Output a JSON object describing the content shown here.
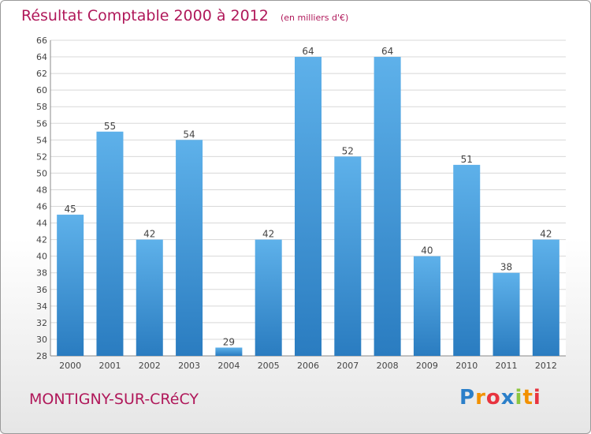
{
  "chart_data": {
    "type": "bar",
    "title": "Résultat Comptable 2000 à 2012",
    "subtitle": "(en milliers d'€)",
    "categories": [
      "2000",
      "2001",
      "2002",
      "2003",
      "2004",
      "2005",
      "2006",
      "2007",
      "2008",
      "2009",
      "2010",
      "2011",
      "2012"
    ],
    "values": [
      45,
      55,
      42,
      54,
      29,
      42,
      64,
      52,
      64,
      40,
      51,
      38,
      42
    ],
    "xlabel": "",
    "ylabel": "",
    "ylim": [
      28,
      66
    ],
    "yticks": [
      28,
      30,
      32,
      34,
      36,
      38,
      40,
      42,
      44,
      46,
      48,
      50,
      52,
      54,
      56,
      58,
      60,
      62,
      64,
      66
    ],
    "grid": true,
    "bar_color": "#3f97d8"
  },
  "footer": {
    "commune": "MONTIGNY-SUR-CRéCY",
    "brand_letters": [
      "P",
      "r",
      "o",
      "x",
      "i",
      "t",
      "i"
    ],
    "brand_colors": [
      "#2b7fc9",
      "#f29100",
      "#e8343f",
      "#2b7fc9",
      "#8cc63f",
      "#f29100",
      "#e8343f"
    ]
  }
}
